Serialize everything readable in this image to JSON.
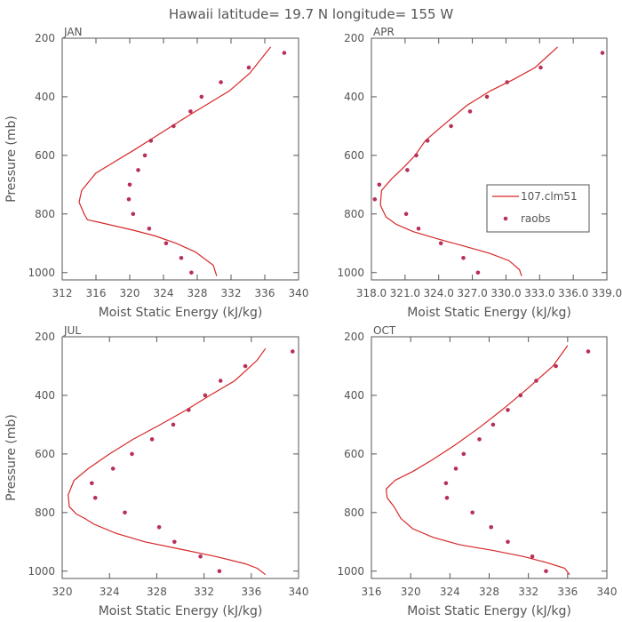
{
  "figure_title": "Hawaii   latitude= 19.7 N longitude= 155 W",
  "colors": {
    "series": "#d62828",
    "raobs": "#b8305a",
    "axis": "#555555"
  },
  "legend": {
    "model_label": "107.clm51",
    "obs_label": "raobs",
    "panel": "APR"
  },
  "chart_data": [
    {
      "type": "line+scatter",
      "panel": "JAN",
      "title": "JAN",
      "xlabel": "Moist Static Energy (kJ/kg)",
      "ylabel": "Pressure (mb)",
      "xlim": [
        312,
        340
      ],
      "ylim": [
        1025,
        200
      ],
      "xticks": [
        312,
        316,
        320,
        324,
        328,
        332,
        336,
        340
      ],
      "xtick_labels": [
        "312",
        "316",
        "320",
        "324",
        "328",
        "332",
        "336",
        "340"
      ],
      "yticks": [
        200,
        400,
        600,
        800,
        1000
      ],
      "series": [
        {
          "name": "107.clm51",
          "kind": "line",
          "x": [
            330.3,
            329.9,
            327.8,
            325.5,
            323.0,
            320.4,
            318.1,
            316.3,
            315.0,
            314.6,
            314.0,
            314.3,
            316.0,
            318.3,
            320.6,
            322.8,
            325.0,
            327.2,
            329.5,
            331.8,
            334.2,
            336.7
          ],
          "y": [
            1012,
            975,
            930,
            900,
            875,
            855,
            840,
            828,
            820,
            800,
            760,
            720,
            660,
            620,
            580,
            540,
            500,
            460,
            420,
            380,
            320,
            230
          ]
        },
        {
          "name": "raobs",
          "kind": "points",
          "x": [
            327.3,
            326.1,
            324.3,
            322.3,
            320.4,
            319.9,
            320.0,
            321.0,
            321.8,
            322.5,
            325.2,
            327.2,
            328.5,
            330.8,
            334.1,
            338.3
          ],
          "y": [
            1000,
            950,
            900,
            850,
            800,
            750,
            700,
            650,
            600,
            550,
            500,
            450,
            400,
            350,
            300,
            250
          ]
        }
      ]
    },
    {
      "type": "line+scatter",
      "panel": "APR",
      "title": "APR",
      "xlabel": "Moist Static Energy (kJ/kg)",
      "ylabel": "",
      "xlim": [
        318,
        339
      ],
      "ylim": [
        1025,
        200
      ],
      "xticks": [
        318,
        321,
        324,
        327,
        330,
        333,
        336,
        339
      ],
      "xtick_labels": [
        "318.0",
        "321.0",
        "324.0",
        "327.0",
        "330.0",
        "333.0",
        "336.0",
        "339.0"
      ],
      "yticks": [
        200,
        400,
        600,
        800,
        1000
      ],
      "series": [
        {
          "name": "107.clm51",
          "kind": "line",
          "x": [
            331.4,
            331.2,
            330.3,
            328.6,
            326.3,
            323.9,
            321.7,
            320.2,
            319.3,
            318.8,
            318.9,
            319.8,
            320.9,
            321.9,
            322.8,
            324.3,
            326.5,
            328.6,
            330.7,
            332.6,
            334.6
          ],
          "y": [
            1012,
            990,
            960,
            935,
            910,
            885,
            860,
            835,
            810,
            770,
            720,
            680,
            640,
            600,
            550,
            500,
            430,
            380,
            340,
            300,
            230
          ]
        },
        {
          "name": "raobs",
          "kind": "points",
          "x": [
            327.5,
            326.2,
            324.2,
            322.2,
            321.1,
            318.3,
            318.7,
            321.2,
            322.0,
            323.0,
            325.1,
            326.8,
            328.3,
            330.1,
            333.1,
            338.6
          ],
          "y": [
            1000,
            950,
            900,
            850,
            800,
            750,
            700,
            650,
            600,
            550,
            500,
            450,
            400,
            350,
            300,
            250
          ]
        }
      ]
    },
    {
      "type": "line+scatter",
      "panel": "JUL",
      "title": "JUL",
      "xlabel": "Moist Static Energy (kJ/kg)",
      "ylabel": "Pressure (mb)",
      "xlim": [
        320,
        340
      ],
      "ylim": [
        1025,
        200
      ],
      "xticks": [
        320,
        324,
        328,
        332,
        336,
        340
      ],
      "xtick_labels": [
        "320",
        "324",
        "328",
        "332",
        "336",
        "340"
      ],
      "yticks": [
        200,
        400,
        600,
        800,
        1000
      ],
      "series": [
        {
          "name": "107.clm51",
          "kind": "line",
          "x": [
            337.2,
            336.5,
            335.5,
            333.0,
            330.0,
            327.0,
            324.5,
            322.7,
            321.9,
            321.2,
            320.6,
            320.5,
            321.0,
            322.2,
            324.0,
            326.0,
            328.3,
            330.5,
            332.5,
            334.6,
            336.5,
            337.2
          ],
          "y": [
            1012,
            990,
            975,
            950,
            925,
            900,
            870,
            840,
            820,
            805,
            780,
            740,
            690,
            650,
            600,
            550,
            500,
            450,
            400,
            350,
            280,
            240
          ]
        },
        {
          "name": "raobs",
          "kind": "points",
          "x": [
            333.3,
            331.7,
            329.5,
            328.2,
            325.3,
            322.8,
            322.5,
            324.3,
            325.9,
            327.6,
            329.4,
            330.7,
            332.1,
            333.4,
            335.5,
            339.5
          ],
          "y": [
            1000,
            950,
            900,
            850,
            800,
            750,
            700,
            650,
            600,
            550,
            500,
            450,
            400,
            350,
            300,
            250
          ]
        }
      ]
    },
    {
      "type": "line+scatter",
      "panel": "OCT",
      "title": "OCT",
      "xlabel": "Moist Static Energy (kJ/kg)",
      "ylabel": "",
      "xlim": [
        316,
        340
      ],
      "ylim": [
        1025,
        200
      ],
      "xticks": [
        316,
        320,
        324,
        328,
        332,
        336,
        340
      ],
      "xtick_labels": [
        "316",
        "320",
        "324",
        "328",
        "332",
        "336",
        "340"
      ],
      "yticks": [
        200,
        400,
        600,
        800,
        1000
      ],
      "series": [
        {
          "name": "107.clm51",
          "kind": "line",
          "x": [
            336.2,
            335.7,
            333.8,
            331.5,
            328.5,
            325.0,
            322.3,
            320.2,
            319.0,
            318.3,
            317.6,
            317.5,
            318.4,
            320.2,
            322.2,
            324.5,
            327.0,
            329.3,
            331.8,
            334.5,
            336.0
          ],
          "y": [
            1012,
            990,
            970,
            950,
            930,
            910,
            885,
            855,
            820,
            780,
            750,
            720,
            690,
            660,
            620,
            570,
            510,
            450,
            380,
            300,
            230
          ]
        },
        {
          "name": "raobs",
          "kind": "points",
          "x": [
            333.8,
            332.4,
            329.9,
            328.2,
            326.3,
            323.7,
            323.6,
            324.6,
            325.4,
            327.0,
            328.4,
            329.9,
            331.2,
            332.8,
            334.8,
            338.1
          ],
          "y": [
            1000,
            950,
            900,
            850,
            800,
            750,
            700,
            650,
            600,
            550,
            500,
            450,
            400,
            350,
            300,
            250
          ]
        }
      ]
    }
  ]
}
